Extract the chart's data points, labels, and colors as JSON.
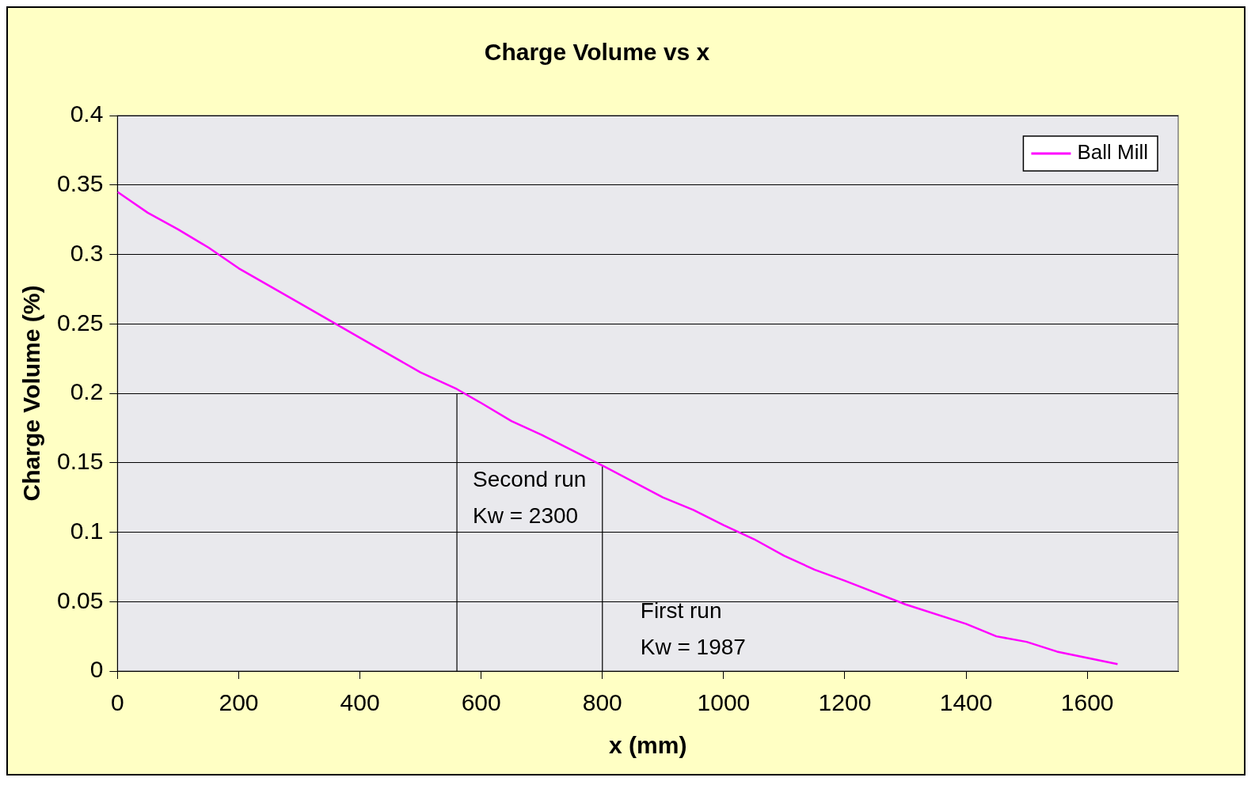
{
  "chart_data": {
    "type": "line",
    "title": "Charge Volume vs x",
    "xlabel": "x (mm)",
    "ylabel": "Charge Volume (%)",
    "xlim": [
      0,
      1750
    ],
    "xticks": [
      0,
      200,
      400,
      600,
      800,
      1000,
      1200,
      1400,
      1600
    ],
    "ylim": [
      0,
      0.4
    ],
    "yticks": [
      0,
      0.05,
      0.1,
      0.15,
      0.2,
      0.25,
      0.3,
      0.35,
      0.4
    ],
    "grid": "y",
    "legend": "top right",
    "marker": "none",
    "series": [
      {
        "name": "Ball Mill",
        "color": "#ff00ff",
        "x": [
          0,
          50,
          100,
          150,
          200,
          300,
          400,
          500,
          560,
          600,
          650,
          700,
          800,
          900,
          950,
          1000,
          1050,
          1100,
          1150,
          1200,
          1300,
          1400,
          1450,
          1500,
          1550,
          1650
        ],
        "values": [
          0.345,
          0.33,
          0.318,
          0.305,
          0.29,
          0.265,
          0.24,
          0.215,
          0.203,
          0.193,
          0.18,
          0.17,
          0.148,
          0.125,
          0.116,
          0.105,
          0.095,
          0.083,
          0.073,
          0.065,
          0.048,
          0.034,
          0.025,
          0.021,
          0.014,
          0.005
        ]
      },
      {
        "color": "#000000",
        "x": [
          560,
          560
        ],
        "values": [
          0,
          0.2
        ]
      },
      {
        "color": "#000000",
        "x": [
          800,
          800
        ],
        "values": [
          0,
          0.148
        ]
      }
    ],
    "annotations": [
      "Second run\nKw = 2300",
      "First run\nKw = 1987"
    ]
  }
}
